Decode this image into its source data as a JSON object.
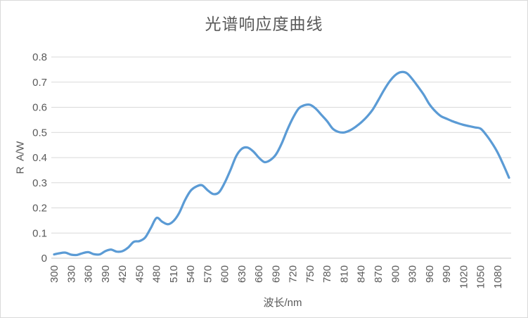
{
  "chart": {
    "title": "光谱响应度曲线",
    "x_axis_title": "波长/nm",
    "y_axis_title": "R  A/W"
  },
  "chart_data": {
    "type": "line",
    "title": "光谱响应度曲线",
    "xlabel": "波长/nm",
    "ylabel": "R  A/W",
    "xlim": [
      300,
      1100
    ],
    "ylim": [
      0,
      0.8
    ],
    "grid": true,
    "legend": false,
    "line_color": "#5B9BD5",
    "grid_color": "#D9D9D9",
    "axis_color": "#C6C6C6",
    "text_color": "#595959",
    "xticks": [
      300,
      330,
      360,
      390,
      420,
      450,
      480,
      510,
      540,
      570,
      600,
      630,
      660,
      690,
      720,
      750,
      780,
      810,
      840,
      870,
      900,
      930,
      960,
      990,
      1020,
      1050,
      1080
    ],
    "yticks": [
      0,
      0.1,
      0.2,
      0.3,
      0.4,
      0.5,
      0.6,
      0.7,
      0.8
    ],
    "x": [
      300,
      310,
      320,
      330,
      340,
      350,
      360,
      370,
      380,
      390,
      400,
      410,
      420,
      430,
      440,
      450,
      460,
      470,
      480,
      490,
      500,
      510,
      520,
      530,
      540,
      550,
      560,
      570,
      580,
      590,
      600,
      610,
      620,
      630,
      640,
      650,
      660,
      670,
      680,
      690,
      700,
      710,
      720,
      730,
      740,
      750,
      760,
      770,
      780,
      790,
      800,
      810,
      820,
      830,
      840,
      850,
      860,
      870,
      880,
      890,
      900,
      910,
      920,
      930,
      940,
      950,
      960,
      970,
      980,
      990,
      1000,
      1010,
      1020,
      1030,
      1040,
      1050,
      1060,
      1070,
      1080,
      1090,
      1100
    ],
    "values": [
      0.015,
      0.02,
      0.022,
      0.014,
      0.013,
      0.02,
      0.024,
      0.016,
      0.015,
      0.028,
      0.034,
      0.026,
      0.028,
      0.042,
      0.065,
      0.068,
      0.082,
      0.12,
      0.16,
      0.145,
      0.135,
      0.148,
      0.18,
      0.23,
      0.268,
      0.285,
      0.29,
      0.27,
      0.255,
      0.262,
      0.3,
      0.35,
      0.405,
      0.435,
      0.44,
      0.425,
      0.4,
      0.382,
      0.39,
      0.412,
      0.455,
      0.51,
      0.558,
      0.595,
      0.608,
      0.61,
      0.595,
      0.57,
      0.545,
      0.515,
      0.502,
      0.5,
      0.508,
      0.522,
      0.54,
      0.562,
      0.59,
      0.628,
      0.668,
      0.703,
      0.728,
      0.74,
      0.736,
      0.712,
      0.682,
      0.65,
      0.612,
      0.585,
      0.565,
      0.555,
      0.545,
      0.537,
      0.53,
      0.525,
      0.52,
      0.515,
      0.49,
      0.458,
      0.42,
      0.372,
      0.32
    ]
  }
}
